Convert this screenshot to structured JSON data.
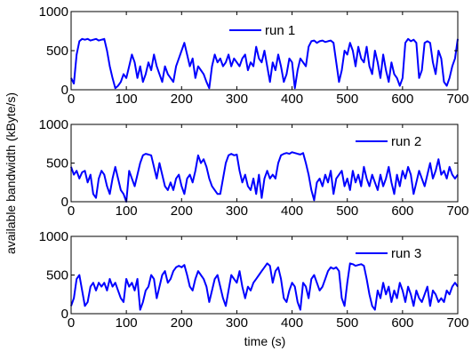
{
  "chart_data": {
    "type": "line",
    "ylabel": "available bandwidth (kByte/s)",
    "xlabel": "time (s)",
    "xlim": [
      0,
      700
    ],
    "ylim": [
      0,
      1000
    ],
    "xticks": [
      "0",
      "100",
      "200",
      "300",
      "400",
      "500",
      "600",
      "700"
    ],
    "yticks": [
      "0",
      "500",
      "1000"
    ],
    "grid": false,
    "legend_position": "top-right",
    "line_color": "#0000ff",
    "panels": [
      {
        "series": [
          {
            "name": "run 1",
            "x": [
              0,
              5,
              10,
              15,
              20,
              25,
              30,
              35,
              40,
              45,
              50,
              55,
              60,
              65,
              70,
              75,
              80,
              85,
              90,
              95,
              100,
              105,
              110,
              115,
              120,
              125,
              130,
              135,
              140,
              145,
              150,
              155,
              160,
              165,
              170,
              175,
              180,
              185,
              190,
              195,
              200,
              205,
              210,
              215,
              220,
              225,
              230,
              235,
              240,
              245,
              250,
              255,
              260,
              265,
              270,
              275,
              280,
              285,
              290,
              295,
              300,
              305,
              310,
              315,
              320,
              325,
              330,
              335,
              340,
              345,
              350,
              355,
              360,
              365,
              370,
              375,
              380,
              385,
              390,
              395,
              400,
              405,
              410,
              415,
              420,
              425,
              430,
              435,
              440,
              445,
              450,
              455,
              460,
              465,
              470,
              475,
              480,
              485,
              490,
              495,
              500,
              505,
              510,
              515,
              520,
              525,
              530,
              535,
              540,
              545,
              550,
              555,
              560,
              565,
              570,
              575,
              580,
              585,
              590,
              595,
              600,
              605,
              610,
              615,
              620,
              625,
              630,
              635,
              640,
              645,
              650,
              655,
              660,
              665,
              670,
              675,
              680,
              685,
              690,
              695,
              700
            ],
            "y": [
              150,
              80,
              450,
              620,
              650,
              640,
              650,
              630,
              640,
              650,
              630,
              640,
              650,
              500,
              300,
              150,
              20,
              50,
              100,
              200,
              150,
              300,
              450,
              350,
              150,
              300,
              100,
              200,
              350,
              250,
              450,
              300,
              200,
              100,
              300,
              200,
              150,
              100,
              300,
              400,
              500,
              600,
              450,
              300,
              400,
              150,
              300,
              250,
              200,
              100,
              20,
              300,
              450,
              350,
              400,
              300,
              350,
              450,
              300,
              400,
              350,
              300,
              400,
              450,
              250,
              350,
              300,
              550,
              400,
              350,
              500,
              300,
              100,
              350,
              250,
              450,
              300,
              100,
              200,
              400,
              350,
              20,
              250,
              400,
              350,
              300,
              550,
              620,
              630,
              600,
              620,
              630,
              610,
              620,
              630,
              600,
              350,
              100,
              250,
              500,
              450,
              600,
              500,
              300,
              550,
              400,
              350,
              550,
              300,
              200,
              500,
              350,
              150,
              450,
              250,
              100,
              350,
              200,
              150,
              50,
              150,
              600,
              650,
              620,
              640,
              600,
              150,
              250,
              600,
              620,
              600,
              350,
              200,
              500,
              400,
              100,
              50,
              150,
              300,
              400,
              650
            ]
          }
        ]
      },
      {
        "series": [
          {
            "name": "run 2",
            "x": [
              0,
              5,
              10,
              15,
              20,
              25,
              30,
              35,
              40,
              45,
              50,
              55,
              60,
              65,
              70,
              75,
              80,
              85,
              90,
              95,
              100,
              105,
              110,
              115,
              120,
              125,
              130,
              135,
              140,
              145,
              150,
              155,
              160,
              165,
              170,
              175,
              180,
              185,
              190,
              195,
              200,
              205,
              210,
              215,
              220,
              225,
              230,
              235,
              240,
              245,
              250,
              255,
              260,
              265,
              270,
              275,
              280,
              285,
              290,
              295,
              300,
              305,
              310,
              315,
              320,
              325,
              330,
              335,
              340,
              345,
              350,
              355,
              360,
              365,
              370,
              375,
              380,
              385,
              390,
              395,
              400,
              405,
              410,
              415,
              420,
              425,
              430,
              435,
              440,
              445,
              450,
              455,
              460,
              465,
              470,
              475,
              480,
              485,
              490,
              495,
              500,
              505,
              510,
              515,
              520,
              525,
              530,
              535,
              540,
              545,
              550,
              555,
              560,
              565,
              570,
              575,
              580,
              585,
              590,
              595,
              600,
              605,
              610,
              615,
              620,
              625,
              630,
              635,
              640,
              645,
              650,
              655,
              660,
              665,
              670,
              675,
              680,
              685,
              690,
              695,
              700
            ],
            "y": [
              450,
              350,
              400,
              300,
              380,
              400,
              250,
              350,
              100,
              50,
              300,
              400,
              350,
              200,
              100,
              300,
              450,
              300,
              150,
              100,
              0,
              400,
              300,
              200,
              350,
              500,
              600,
              620,
              610,
              600,
              450,
              300,
              500,
              350,
              200,
              150,
              250,
              150,
              300,
              350,
              200,
              100,
              300,
              350,
              250,
              400,
              600,
              500,
              550,
              450,
              300,
              200,
              150,
              100,
              100,
              300,
              500,
              600,
              620,
              600,
              610,
              400,
              250,
              350,
              200,
              150,
              300,
              100,
              350,
              50,
              300,
              400,
              300,
              350,
              300,
              500,
              600,
              620,
              630,
              620,
              640,
              630,
              620,
              610,
              630,
              500,
              350,
              150,
              20,
              250,
              300,
              200,
              350,
              250,
              400,
              100,
              300,
              350,
              400,
              200,
              300,
              150,
              400,
              250,
              350,
              200,
              450,
              300,
              200,
              350,
              250,
              150,
              350,
              200,
              300,
              450,
              250,
              100,
              350,
              200,
              400,
              300,
              450,
              350,
              100,
              250,
              400,
              300,
              200,
              350,
              500,
              300,
              400,
              550,
              350,
              400,
              300,
              450,
              350,
              300,
              350
            ]
          }
        ]
      },
      {
        "series": [
          {
            "name": "run 3",
            "x": [
              0,
              5,
              10,
              15,
              20,
              25,
              30,
              35,
              40,
              45,
              50,
              55,
              60,
              65,
              70,
              75,
              80,
              85,
              90,
              95,
              100,
              105,
              110,
              115,
              120,
              125,
              130,
              135,
              140,
              145,
              150,
              155,
              160,
              165,
              170,
              175,
              180,
              185,
              190,
              195,
              200,
              205,
              210,
              215,
              220,
              225,
              230,
              235,
              240,
              245,
              250,
              255,
              260,
              265,
              270,
              275,
              280,
              285,
              290,
              295,
              300,
              305,
              310,
              315,
              320,
              325,
              330,
              335,
              340,
              345,
              350,
              355,
              360,
              365,
              370,
              375,
              380,
              385,
              390,
              395,
              400,
              405,
              410,
              415,
              420,
              425,
              430,
              435,
              440,
              445,
              450,
              455,
              460,
              465,
              470,
              475,
              480,
              485,
              490,
              495,
              500,
              505,
              510,
              515,
              520,
              525,
              530,
              535,
              540,
              545,
              550,
              555,
              560,
              565,
              570,
              575,
              580,
              585,
              590,
              595,
              600,
              605,
              610,
              615,
              620,
              625,
              630,
              635,
              640,
              645,
              650,
              655,
              660,
              665,
              670,
              675,
              680,
              685,
              690,
              695,
              700
            ],
            "y": [
              100,
              200,
              450,
              500,
              300,
              100,
              150,
              350,
              400,
              300,
              400,
              350,
              400,
              300,
              450,
              350,
              400,
              300,
              200,
              150,
              450,
              350,
              400,
              300,
              450,
              50,
              150,
              300,
              350,
              500,
              450,
              200,
              350,
              500,
              550,
              400,
              450,
              550,
              600,
              620,
              600,
              630,
              500,
              350,
              300,
              450,
              550,
              500,
              450,
              350,
              150,
              300,
              450,
              500,
              350,
              200,
              100,
              300,
              500,
              450,
              400,
              550,
              350,
              200,
              350,
              300,
              400,
              450,
              500,
              550,
              600,
              650,
              620,
              400,
              550,
              600,
              450,
              200,
              150,
              300,
              400,
              350,
              150,
              50,
              400,
              350,
              200,
              450,
              500,
              400,
              300,
              350,
              450,
              550,
              600,
              580,
              600,
              550,
              200,
              100,
              400,
              650,
              640,
              620,
              630,
              640,
              620,
              450,
              250,
              100,
              50,
              300,
              200,
              400,
              250,
              350,
              150,
              300,
              200,
              400,
              300,
              150,
              350,
              250,
              100,
              300,
              200,
              150,
              250,
              350,
              100,
              300,
              250,
              150,
              200,
              150,
              300,
              250,
              350,
              400,
              350
            ]
          }
        ]
      }
    ]
  }
}
